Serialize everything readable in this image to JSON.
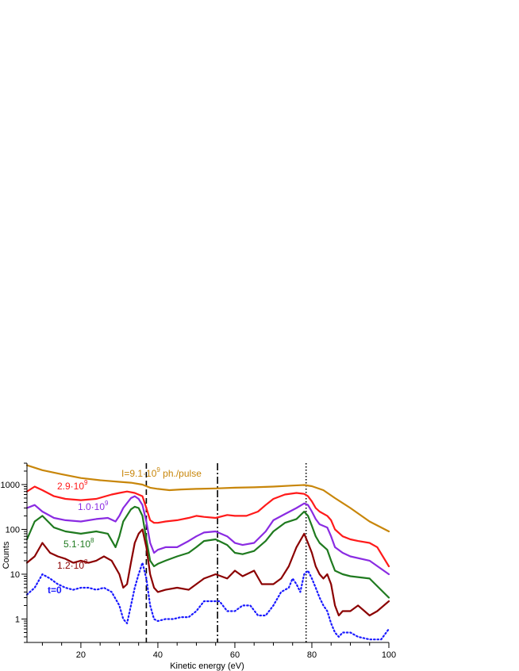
{
  "chart_data": {
    "type": "line",
    "xlabel": "Kinetic energy (eV)",
    "ylabel": "Counts",
    "xlim": [
      6,
      100
    ],
    "ylim": [
      0.3,
      3000
    ],
    "yscale": "log",
    "x_ticks": [
      20,
      40,
      60,
      80,
      100
    ],
    "y_ticks": [
      1,
      10,
      100,
      1000
    ],
    "y_tick_labels": [
      "1",
      "10",
      "100",
      "1000"
    ],
    "grid": false,
    "vertical_lines": [
      {
        "x": 37.0,
        "style": "dashed"
      },
      {
        "x": 55.5,
        "style": "dash-dot"
      },
      {
        "x": 78.5,
        "style": "dotted"
      }
    ],
    "series": [
      {
        "color": "#c8860a",
        "dash": "solid",
        "x": [
          6,
          10,
          15,
          20,
          25,
          30,
          33,
          36,
          38,
          40,
          43,
          46,
          50,
          55,
          60,
          65,
          70,
          75,
          78,
          80,
          83,
          86,
          90,
          95,
          100
        ],
        "y": [
          2700,
          2100,
          1700,
          1400,
          1250,
          1150,
          1100,
          1000,
          850,
          800,
          750,
          780,
          800,
          820,
          850,
          870,
          900,
          950,
          980,
          920,
          750,
          500,
          300,
          150,
          90
        ]
      },
      {
        "color": "#ff1a1a",
        "dash": "solid",
        "x": [
          6,
          8,
          10,
          13,
          16,
          20,
          24,
          28,
          30,
          32,
          34,
          36,
          37,
          38,
          39,
          40,
          42,
          45,
          48,
          50,
          52,
          55,
          58,
          60,
          63,
          66,
          68,
          70,
          73,
          76,
          78,
          79,
          80,
          81,
          82,
          84,
          85,
          86,
          88,
          90,
          92,
          95,
          97,
          100
        ],
        "y": [
          700,
          900,
          750,
          550,
          480,
          450,
          480,
          600,
          650,
          700,
          650,
          550,
          300,
          160,
          140,
          140,
          150,
          160,
          180,
          200,
          190,
          180,
          210,
          200,
          200,
          250,
          350,
          480,
          600,
          650,
          620,
          550,
          420,
          300,
          250,
          200,
          160,
          100,
          70,
          60,
          55,
          50,
          40,
          15
        ]
      },
      {
        "color": "#8a2be2",
        "dash": "solid",
        "x": [
          6,
          8,
          10,
          13,
          16,
          20,
          24,
          27,
          29,
          30,
          31,
          33,
          34,
          35,
          36,
          37,
          38,
          39,
          40,
          42,
          45,
          48,
          50,
          52,
          55,
          58,
          60,
          62,
          65,
          68,
          70,
          73,
          76,
          78,
          79,
          80,
          81,
          82,
          84,
          85,
          86,
          88,
          90,
          95,
          100
        ],
        "y": [
          300,
          350,
          250,
          180,
          160,
          150,
          170,
          180,
          150,
          200,
          300,
          500,
          550,
          480,
          350,
          150,
          50,
          30,
          35,
          40,
          40,
          55,
          70,
          85,
          90,
          70,
          50,
          45,
          50,
          90,
          160,
          220,
          300,
          380,
          350,
          250,
          170,
          130,
          110,
          70,
          40,
          30,
          25,
          20,
          10
        ]
      },
      {
        "color": "#1f7a1f",
        "dash": "solid",
        "x": [
          6,
          8,
          10,
          13,
          16,
          20,
          24,
          27,
          29,
          30,
          31,
          33,
          34,
          35,
          36,
          37,
          38,
          39,
          40,
          42,
          45,
          48,
          50,
          52,
          55,
          58,
          60,
          62,
          65,
          68,
          70,
          73,
          76,
          78,
          79,
          80,
          81,
          82,
          84,
          85,
          86,
          88,
          90,
          95,
          100
        ],
        "y": [
          60,
          150,
          200,
          110,
          90,
          80,
          90,
          80,
          40,
          70,
          150,
          280,
          320,
          300,
          200,
          60,
          20,
          15,
          17,
          20,
          25,
          30,
          40,
          55,
          60,
          45,
          30,
          28,
          33,
          55,
          90,
          140,
          170,
          250,
          200,
          120,
          70,
          50,
          35,
          20,
          12,
          10,
          9,
          8,
          3
        ]
      },
      {
        "color": "#8b0000",
        "dash": "solid",
        "x": [
          6,
          8,
          10,
          12,
          14,
          16,
          18,
          20,
          22,
          24,
          26,
          28,
          30,
          31,
          32,
          33,
          34,
          35,
          36,
          37,
          38,
          39,
          40,
          42,
          45,
          48,
          50,
          52,
          55,
          58,
          60,
          62,
          65,
          67,
          70,
          72,
          74,
          76,
          78,
          79,
          80,
          81,
          82,
          83,
          84,
          85,
          86,
          87,
          88,
          90,
          92,
          95,
          97,
          100
        ],
        "y": [
          18,
          25,
          50,
          30,
          25,
          22,
          18,
          20,
          18,
          20,
          25,
          20,
          10,
          5,
          6,
          18,
          50,
          80,
          100,
          40,
          10,
          5,
          4,
          4.5,
          5,
          4.5,
          6,
          8,
          10,
          8,
          12,
          9,
          12,
          6,
          6,
          8,
          15,
          40,
          80,
          50,
          30,
          15,
          10,
          8,
          10,
          6,
          2,
          1.2,
          1.5,
          1.5,
          2,
          1.2,
          1.5,
          2.5
        ]
      },
      {
        "color": "#1a1aff",
        "dash": "dotted",
        "x": [
          6,
          8,
          10,
          12,
          14,
          16,
          18,
          20,
          22,
          24,
          26,
          28,
          30,
          31,
          32,
          33,
          34,
          35,
          36,
          37,
          38,
          39,
          40,
          42,
          44,
          46,
          48,
          50,
          52,
          54,
          56,
          58,
          60,
          62,
          64,
          66,
          68,
          70,
          72,
          74,
          75,
          76,
          77,
          78,
          79,
          80,
          81,
          82,
          83,
          84,
          85,
          86,
          87,
          88,
          90,
          92,
          95,
          98,
          100
        ],
        "y": [
          3.5,
          5,
          10,
          8,
          6,
          5,
          4.5,
          5,
          5,
          4.5,
          5,
          4,
          2,
          1,
          0.8,
          2,
          5,
          10,
          18,
          8,
          2,
          1,
          0.9,
          1,
          1,
          1.1,
          1.1,
          1.5,
          2.5,
          2.5,
          2.5,
          1.5,
          1.5,
          2,
          2,
          1.2,
          1.2,
          2,
          4,
          5,
          8,
          6,
          4,
          10,
          12,
          8,
          5,
          3,
          2,
          1.5,
          0.8,
          0.5,
          0.4,
          0.5,
          0.5,
          0.4,
          0.35,
          0.35,
          0.6
        ]
      }
    ],
    "annotations": [
      {
        "text": "I=9.1·10",
        "sup": "9",
        "suffix": " ph./pulse",
        "color": "#c8860a"
      },
      {
        "text": "2.9·10",
        "sup": "9",
        "suffix": "",
        "color": "#ff1a1a"
      },
      {
        "text": "1.0·10",
        "sup": "9",
        "suffix": "",
        "color": "#8a2be2"
      },
      {
        "text": "5.1·10",
        "sup": "8",
        "suffix": "",
        "color": "#1f7a1f"
      },
      {
        "text": "1.2·10",
        "sup": "8",
        "suffix": "",
        "color": "#8b0000"
      },
      {
        "text": "t=0",
        "sup": "",
        "suffix": "",
        "color": "#1a1aff",
        "bold": true
      }
    ]
  }
}
